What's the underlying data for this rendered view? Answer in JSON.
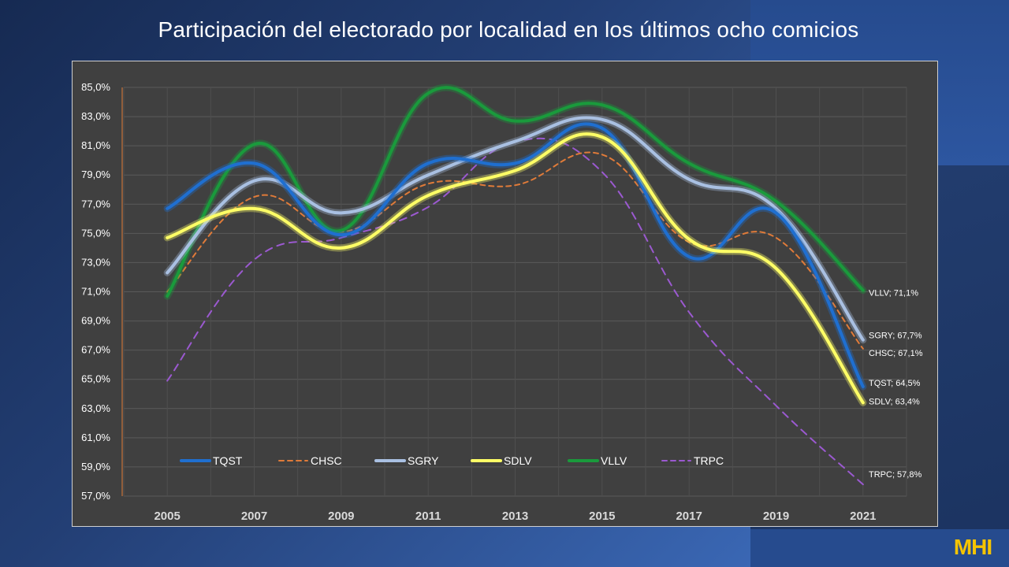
{
  "title": "Participación del electorado por localidad en los últimos ocho comicios",
  "logo_text": "MHI",
  "colors": {
    "logo": "#f5c400"
  },
  "chart_data": {
    "type": "line",
    "title": "Participación del electorado por localidad en los últimos ocho comicios",
    "x": [
      2005,
      2007,
      2009,
      2011,
      2013,
      2015,
      2017,
      2019,
      2021
    ],
    "x_tick_labels": [
      "2005",
      "2007",
      "2009",
      "2011",
      "2013",
      "2015",
      "2017",
      "2019",
      "2021"
    ],
    "ylim": [
      57,
      85
    ],
    "y_ticks": [
      57,
      59,
      61,
      63,
      65,
      67,
      69,
      71,
      73,
      75,
      77,
      79,
      81,
      83,
      85
    ],
    "y_tick_labels": [
      "57,0%",
      "59,0%",
      "61,0%",
      "63,0%",
      "65,0%",
      "67,0%",
      "69,0%",
      "71,0%",
      "73,0%",
      "75,0%",
      "77,0%",
      "79,0%",
      "81,0%",
      "83,0%",
      "85,0%"
    ],
    "grid": true,
    "legend_position": "bottom-left inside",
    "series": [
      {
        "name": "TQST",
        "color": "#1f6fd0",
        "style": "solid",
        "glow": true,
        "values": [
          76.7,
          79.8,
          74.9,
          79.8,
          79.8,
          82.2,
          73.4,
          76.4,
          64.5
        ],
        "end_label": "TQST; 64,5%"
      },
      {
        "name": "CHSC",
        "color": "#e07b39",
        "style": "dashed",
        "glow": false,
        "values": [
          71.0,
          77.5,
          75.1,
          78.4,
          78.3,
          80.4,
          74.4,
          74.7,
          67.1
        ],
        "end_label": "CHSC; 67,1%"
      },
      {
        "name": "SGRY",
        "color": "#a9c0e2",
        "style": "solid",
        "glow": true,
        "values": [
          72.3,
          78.6,
          76.4,
          79.0,
          81.3,
          82.8,
          78.7,
          76.7,
          67.7
        ],
        "end_label": "SGRY; 67,7%"
      },
      {
        "name": "SDLV",
        "color": "#ffff66",
        "style": "solid",
        "glow": true,
        "values": [
          74.7,
          76.7,
          74.0,
          77.6,
          79.3,
          81.6,
          74.6,
          72.6,
          63.4
        ],
        "end_label": "SDLV; 63,4%"
      },
      {
        "name": "VLLV",
        "color": "#1a9a3c",
        "style": "solid",
        "glow": true,
        "values": [
          70.7,
          81.1,
          75.2,
          84.6,
          82.7,
          83.8,
          79.8,
          77.2,
          71.1
        ],
        "end_label": "VLLV; 71,1%"
      },
      {
        "name": "TRPC",
        "color": "#9b59d0",
        "style": "dashed",
        "glow": false,
        "values": [
          64.9,
          73.2,
          74.7,
          76.8,
          81.3,
          79.2,
          69.6,
          63.2,
          57.8
        ],
        "end_label": "TRPC; 57,8%"
      }
    ]
  }
}
